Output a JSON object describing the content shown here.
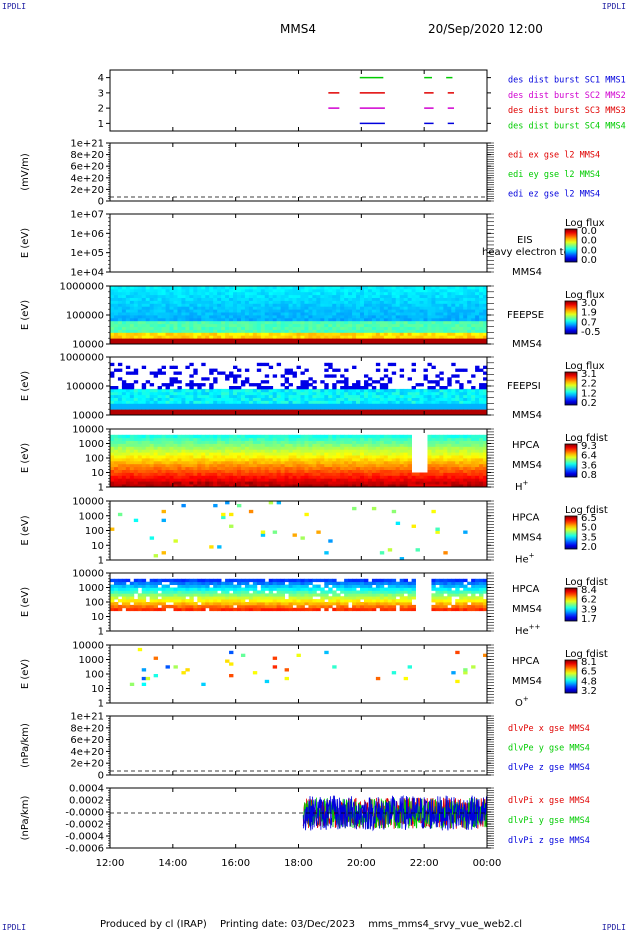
{
  "corner_labels": {
    "top_left": "IPDLI",
    "top_right": "IPDLI",
    "bottom_left": "IPDLI",
    "bottom_right": "IPDLI"
  },
  "header": {
    "spacecraft": "MMS4",
    "datetime": "20/Sep/2020 12:00"
  },
  "footer": {
    "produced_by": "Produced by cl (IRAP)",
    "printing_date": "Printing date: 03/Dec/2023",
    "filename": "mms_mms4_srvy_vue_web2.cl"
  },
  "colors": {
    "red": "#e00000",
    "green": "#00cc00",
    "blue": "#0000dd",
    "magenta": "#d000d0"
  },
  "chart_data": [
    {
      "type": "timeline",
      "ylim": [
        0.5,
        4.5
      ],
      "yticks": [
        "1",
        "2",
        "3",
        "4"
      ],
      "legend": [
        {
          "label": "des dist burst SC1 MMS1",
          "color": "#0000dd"
        },
        {
          "label": "des dist burst SC2 MMS2",
          "color": "#d000d0"
        },
        {
          "label": "des dist burst SC3 MMS3",
          "color": "#e00000"
        },
        {
          "label": "des dist burst SC4 MMS4",
          "color": "#00cc00"
        }
      ],
      "intervals": [
        {
          "row": 4,
          "start": 19.95,
          "end": 20.7,
          "color": "#00cc00"
        },
        {
          "row": 4,
          "start": 22.0,
          "end": 22.25,
          "color": "#00cc00"
        },
        {
          "row": 4,
          "start": 22.7,
          "end": 22.9,
          "color": "#00cc00"
        },
        {
          "row": 3,
          "start": 18.95,
          "end": 19.3,
          "color": "#e00000"
        },
        {
          "row": 3,
          "start": 19.95,
          "end": 20.75,
          "color": "#e00000"
        },
        {
          "row": 3,
          "start": 22.0,
          "end": 22.3,
          "color": "#e00000"
        },
        {
          "row": 3,
          "start": 22.75,
          "end": 22.95,
          "color": "#e00000"
        },
        {
          "row": 2,
          "start": 18.95,
          "end": 19.3,
          "color": "#d000d0"
        },
        {
          "row": 2,
          "start": 19.95,
          "end": 20.75,
          "color": "#d000d0"
        },
        {
          "row": 2,
          "start": 22.0,
          "end": 22.3,
          "color": "#d000d0"
        },
        {
          "row": 2,
          "start": 22.75,
          "end": 22.95,
          "color": "#d000d0"
        },
        {
          "row": 1,
          "start": 19.95,
          "end": 20.75,
          "color": "#0000dd"
        },
        {
          "row": 1,
          "start": 22.0,
          "end": 22.3,
          "color": "#0000dd"
        },
        {
          "row": 1,
          "start": 22.75,
          "end": 22.95,
          "color": "#0000dd"
        }
      ]
    },
    {
      "type": "line",
      "ylabel": "(mV/m)",
      "yticks": [
        "0",
        "2e+20",
        "4e+20",
        "6e+20",
        "8e+20",
        "1e+21"
      ],
      "dashed_zero": true,
      "legend": [
        {
          "label": "edi ex gse l2 MMS4",
          "color": "#e00000"
        },
        {
          "label": "edi ey gse l2 MMS4",
          "color": "#00cc00"
        },
        {
          "label": "edi ez gse l2 MMS4",
          "color": "#0000dd"
        }
      ]
    },
    {
      "type": "heatmap",
      "ylabel": "E (eV)",
      "yticks": [
        "1e+04",
        "1e+05",
        "1e+06",
        "1e+07"
      ],
      "instrument": [
        "EIS",
        "MMS4"
      ],
      "overlay_text": "heavy electron to",
      "colorbar": {
        "title": "Log flux",
        "ticks": [
          "0.0",
          "0.0",
          "0.0",
          "0.0"
        ]
      },
      "pattern": "empty"
    },
    {
      "type": "heatmap",
      "ylabel": "E (eV)",
      "yticks": [
        "10000",
        "100000",
        "1000000"
      ],
      "instrument": [
        "FEEPSE",
        "MMS4"
      ],
      "colorbar": {
        "title": "Log flux",
        "ticks": [
          "3.0",
          "1.9",
          "0.7",
          "-0.5"
        ]
      },
      "pattern": "feeps_e"
    },
    {
      "type": "heatmap",
      "ylabel": "E (eV)",
      "yticks": [
        "10000",
        "100000",
        "1000000"
      ],
      "instrument": [
        "FEEPSI",
        "MMS4"
      ],
      "colorbar": {
        "title": "Log flux",
        "ticks": [
          "3.1",
          "2.2",
          "1.2",
          "0.2"
        ]
      },
      "pattern": "feeps_i"
    },
    {
      "type": "heatmap",
      "ylabel": "E (eV)",
      "yticks": [
        "1",
        "10",
        "100",
        "1000",
        "10000"
      ],
      "instrument": [
        "HPCA",
        "MMS4"
      ],
      "species": "H",
      "species_charge": "+",
      "colorbar": {
        "title": "Log fdist",
        "ticks": [
          "9.3",
          "6.4",
          "3.6",
          "0.8"
        ]
      },
      "pattern": "hpca_h"
    },
    {
      "type": "heatmap",
      "ylabel": "E (eV)",
      "yticks": [
        "1",
        "10",
        "100",
        "1000",
        "10000"
      ],
      "instrument": [
        "HPCA",
        "MMS4"
      ],
      "species": "He",
      "species_charge": "+",
      "colorbar": {
        "title": "Log fdist",
        "ticks": [
          "6.5",
          "5.0",
          "3.5",
          "2.0"
        ]
      },
      "pattern": "hpca_he1"
    },
    {
      "type": "heatmap",
      "ylabel": "E (eV)",
      "yticks": [
        "1",
        "10",
        "100",
        "1000",
        "10000"
      ],
      "instrument": [
        "HPCA",
        "MMS4"
      ],
      "species": "He",
      "species_charge": "++",
      "colorbar": {
        "title": "Log fdist",
        "ticks": [
          "8.4",
          "6.2",
          "3.9",
          "1.7"
        ]
      },
      "pattern": "hpca_he2"
    },
    {
      "type": "heatmap",
      "ylabel": "E (eV)",
      "yticks": [
        "1",
        "10",
        "100",
        "1000",
        "10000"
      ],
      "instrument": [
        "HPCA",
        "MMS4"
      ],
      "species": "O",
      "species_charge": "+",
      "colorbar": {
        "title": "Log fdist",
        "ticks": [
          "8.1",
          "6.5",
          "4.8",
          "3.2"
        ]
      },
      "pattern": "hpca_o"
    },
    {
      "type": "line",
      "ylabel": "(nPa/km)",
      "yticks": [
        "0",
        "2e+20",
        "4e+20",
        "6e+20",
        "8e+20",
        "1e+21"
      ],
      "dashed_zero": true,
      "legend": [
        {
          "label": "dlvPe x gse MMS4",
          "color": "#e00000"
        },
        {
          "label": "dlvPe y gse MMS4",
          "color": "#00cc00"
        },
        {
          "label": "dlvPe z gse MMS4",
          "color": "#0000dd"
        }
      ]
    },
    {
      "type": "line",
      "ylabel": "(nPa/km)",
      "yticks": [
        "-0.0006",
        "-0.0004",
        "-0.0002",
        "-0.0000",
        "0.0002",
        "0.0004"
      ],
      "ylim": [
        -0.0007,
        0.0005
      ],
      "dashed_zero": true,
      "noise": {
        "start": 18.15,
        "end": 24.0,
        "amplitude": 0.00035
      },
      "legend": [
        {
          "label": "dlvPi x gse MMS4",
          "color": "#e00000"
        },
        {
          "label": "dlvPi y gse MMS4",
          "color": "#00cc00"
        },
        {
          "label": "dlvPi z gse MMS4",
          "color": "#0000dd"
        }
      ]
    }
  ],
  "time_axis": {
    "range": [
      12,
      24
    ],
    "ticks": [
      {
        "t": 12,
        "label": "12:00"
      },
      {
        "t": 14,
        "label": "14:00"
      },
      {
        "t": 16,
        "label": "16:00"
      },
      {
        "t": 18,
        "label": "18:00"
      },
      {
        "t": 20,
        "label": "20:00"
      },
      {
        "t": 22,
        "label": "22:00"
      },
      {
        "t": 24,
        "label": "00:00"
      }
    ]
  }
}
